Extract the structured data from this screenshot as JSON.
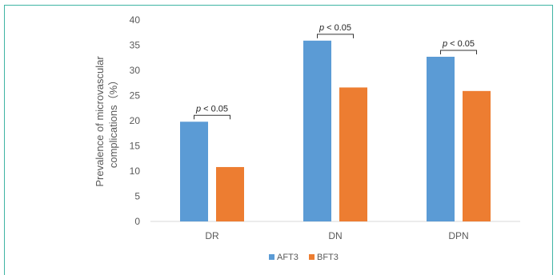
{
  "chart_data": {
    "type": "bar",
    "categories": [
      "DR",
      "DN",
      "DPN"
    ],
    "series": [
      {
        "name": "AFT3",
        "color": "#5b9bd5",
        "values": [
          19.8,
          35.9,
          32.7
        ]
      },
      {
        "name": "BFT3",
        "color": "#ed7d31",
        "values": [
          10.8,
          26.6,
          25.9
        ]
      }
    ],
    "yticks": [
      0,
      5,
      10,
      15,
      20,
      25,
      30,
      35,
      40
    ],
    "ylim": [
      0,
      40
    ],
    "ylabel_line1": "Prevalence of microvascular",
    "ylabel_line2": "complications（%）",
    "annotations": [
      {
        "category": "DR",
        "p": "p",
        "rest": " < 0.05"
      },
      {
        "category": "DN",
        "p": "p",
        "rest": " < 0.05"
      },
      {
        "category": "DPN",
        "p": "p",
        "rest": " < 0.05"
      }
    ],
    "legend_position": "bottom"
  }
}
